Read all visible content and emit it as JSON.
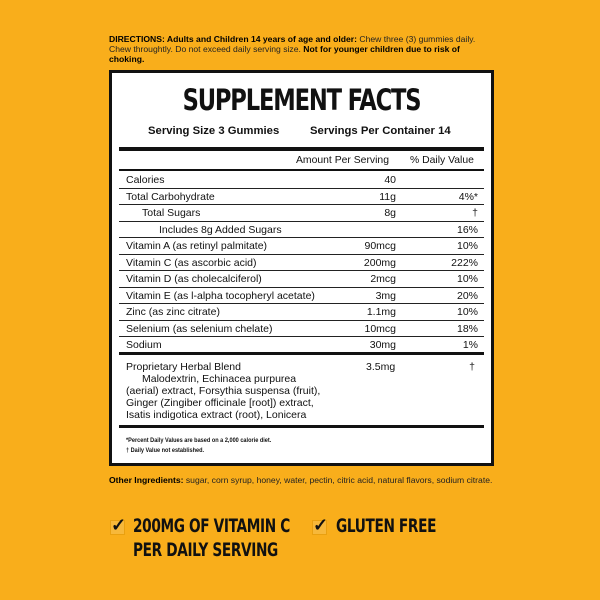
{
  "directions": {
    "label": "DIRECTIONS: Adults and Children 14 years of age and older:",
    "text": " Chew three (3) gummies daily. Chew throughtly. Do not exceed daily serving size. ",
    "warning": "Not for younger children due to risk of choking."
  },
  "facts": {
    "title": "SUPPLEMENT FACTS",
    "serving_size": "Serving Size 3 Gummies",
    "servings_per_container": "Servings Per Container 14",
    "col_amount": "Amount Per Serving",
    "col_dv": "% Daily Value",
    "rows": [
      {
        "label": "Calories",
        "amount": "40",
        "dv": ""
      },
      {
        "label": "Total Carbohydrate",
        "amount": "11g",
        "dv": "4%*"
      },
      {
        "label": "Total Sugars",
        "amount": "8g",
        "dv": "†"
      },
      {
        "label": "Includes 8g Added Sugars",
        "amount": "",
        "dv": "16%"
      },
      {
        "label": "Vitamin A (as retinyl palmitate)",
        "amount": "90mcg",
        "dv": "10%"
      },
      {
        "label": "Vitamin C (as ascorbic acid)",
        "amount": "200mg",
        "dv": "222%"
      },
      {
        "label": "Vitamin D (as cholecalciferol)",
        "amount": "2mcg",
        "dv": "10%"
      },
      {
        "label": "Vitamin E (as l-alpha tocopheryl acetate)",
        "amount": "3mg",
        "dv": "20%"
      },
      {
        "label": "Zinc (as zinc citrate)",
        "amount": "1.1mg",
        "dv": "10%"
      },
      {
        "label": "Selenium (as selenium chelate)",
        "amount": "10mcg",
        "dv": "18%"
      },
      {
        "label": "Sodium",
        "amount": "30mg",
        "dv": "1%"
      }
    ],
    "blend": {
      "label": "Proprietary Herbal Blend",
      "amount": "3.5mg",
      "dv": "†",
      "lines": [
        "Malodextrin, Echinacea purpurea",
        "(aerial) extract, Forsythia suspensa (fruit),",
        "Ginger (Zingiber officinale [root]) extract,",
        "Isatis indigotica extract (root), Lonicera"
      ]
    },
    "footnote1": "*Percent Daily Values are based on a 2,000 calorie diet.",
    "footnote2": "† Daily Value not established."
  },
  "other_ingredients": {
    "label": "Other Ingredients:",
    "text": " sugar, corn syrup, honey, water, pectin, citric acid, natural flavors, sodium citrate."
  },
  "claims": [
    {
      "line1": "200MG OF VITAMIN C",
      "line2": "PER DAILY SERVING",
      "icon": "check-icon"
    },
    {
      "line1": "GLUTEN FREE",
      "line2": "",
      "icon": "check-icon"
    }
  ],
  "colors": {
    "background": "#F9AE1B",
    "panel": "#FFFFFF",
    "text": "#111111"
  }
}
